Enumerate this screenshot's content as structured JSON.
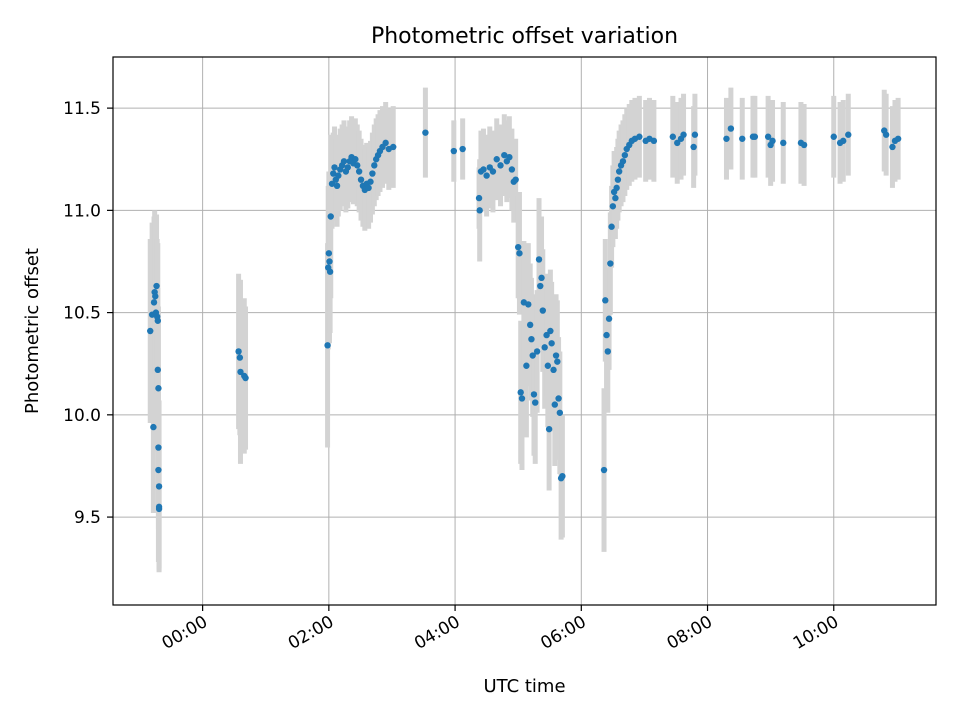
{
  "chart_data": {
    "type": "scatter",
    "title": "Photometric offset variation",
    "xlabel": "UTC time",
    "ylabel": "Photometric offset",
    "x_unit": "hours UTC",
    "xlim": [
      -1.42,
      11.62
    ],
    "ylim": [
      9.07,
      11.75
    ],
    "x_ticks": [
      {
        "value": 0,
        "label": "00:00"
      },
      {
        "value": 2,
        "label": "02:00"
      },
      {
        "value": 4,
        "label": "04:00"
      },
      {
        "value": 6,
        "label": "06:00"
      },
      {
        "value": 8,
        "label": "08:00"
      },
      {
        "value": 10,
        "label": "10:00"
      }
    ],
    "y_ticks": [
      {
        "value": 9.5,
        "label": "9.5"
      },
      {
        "value": 10.0,
        "label": "10.0"
      },
      {
        "value": 10.5,
        "label": "10.5"
      },
      {
        "value": 11.0,
        "label": "11.0"
      },
      {
        "value": 11.5,
        "label": "11.5"
      }
    ],
    "grid": true,
    "colors": {
      "marker": "#1f77b4",
      "errorbar": "#d3d3d3"
    },
    "series": [
      {
        "points": [
          [
            -0.83,
            10.41,
            0.45
          ],
          [
            -0.8,
            10.49,
            0.45
          ],
          [
            -0.78,
            9.94,
            0.42
          ],
          [
            -0.77,
            10.55,
            0.42
          ],
          [
            -0.76,
            10.6,
            0.4
          ],
          [
            -0.75,
            10.58,
            0.38
          ],
          [
            -0.74,
            10.5,
            0.4
          ],
          [
            -0.73,
            10.63,
            0.35
          ],
          [
            -0.72,
            10.48,
            0.38
          ],
          [
            -0.71,
            10.46,
            0.38
          ],
          [
            -0.71,
            10.22,
            0.4
          ],
          [
            -0.7,
            10.13,
            0.4
          ],
          [
            -0.7,
            9.84,
            0.4
          ],
          [
            -0.7,
            9.73,
            0.45
          ],
          [
            -0.69,
            9.65,
            0.42
          ],
          [
            -0.69,
            9.55,
            0.3
          ],
          [
            -0.69,
            9.54,
            0.3
          ],
          [
            0.57,
            10.31,
            0.38
          ],
          [
            0.59,
            10.28,
            0.38
          ],
          [
            0.6,
            10.21,
            0.45
          ],
          [
            0.66,
            10.19,
            0.38
          ],
          [
            0.68,
            10.18,
            0.35
          ],
          [
            1.98,
            10.34,
            0.5
          ],
          [
            1.99,
            10.72,
            0.4
          ],
          [
            2.0,
            10.79,
            0.4
          ],
          [
            2.01,
            10.75,
            0.4
          ],
          [
            2.02,
            10.7,
            0.3
          ],
          [
            2.03,
            10.97,
            0.4
          ],
          [
            2.05,
            11.13,
            0.22
          ],
          [
            2.07,
            11.18,
            0.2
          ],
          [
            2.09,
            11.21,
            0.2
          ],
          [
            2.11,
            11.15,
            0.2
          ],
          [
            2.13,
            11.12,
            0.2
          ],
          [
            2.15,
            11.17,
            0.2
          ],
          [
            2.18,
            11.2,
            0.2
          ],
          [
            2.21,
            11.22,
            0.2
          ],
          [
            2.24,
            11.24,
            0.2
          ],
          [
            2.27,
            11.19,
            0.2
          ],
          [
            2.3,
            11.21,
            0.2
          ],
          [
            2.33,
            11.24,
            0.2
          ],
          [
            2.36,
            11.26,
            0.2
          ],
          [
            2.39,
            11.23,
            0.2
          ],
          [
            2.42,
            11.25,
            0.2
          ],
          [
            2.45,
            11.22,
            0.2
          ],
          [
            2.48,
            11.19,
            0.2
          ],
          [
            2.51,
            11.15,
            0.2
          ],
          [
            2.54,
            11.12,
            0.2
          ],
          [
            2.57,
            11.1,
            0.2
          ],
          [
            2.6,
            11.13,
            0.2
          ],
          [
            2.63,
            11.11,
            0.2
          ],
          [
            2.66,
            11.14,
            0.2
          ],
          [
            2.69,
            11.18,
            0.2
          ],
          [
            2.72,
            11.22,
            0.2
          ],
          [
            2.75,
            11.25,
            0.2
          ],
          [
            2.78,
            11.27,
            0.2
          ],
          [
            2.81,
            11.29,
            0.2
          ],
          [
            2.85,
            11.31,
            0.2
          ],
          [
            2.9,
            11.33,
            0.2
          ],
          [
            2.95,
            11.3,
            0.2
          ],
          [
            3.02,
            11.31,
            0.2
          ],
          [
            3.53,
            11.38,
            0.22
          ],
          [
            3.98,
            11.29,
            0.15
          ],
          [
            4.12,
            11.3,
            0.15
          ],
          [
            4.38,
            11.06,
            0.15
          ],
          [
            4.39,
            11.0,
            0.25
          ],
          [
            4.41,
            11.19,
            0.2
          ],
          [
            4.45,
            11.2,
            0.2
          ],
          [
            4.5,
            11.17,
            0.2
          ],
          [
            4.55,
            11.21,
            0.2
          ],
          [
            4.6,
            11.19,
            0.2
          ],
          [
            4.66,
            11.25,
            0.2
          ],
          [
            4.72,
            11.22,
            0.2
          ],
          [
            4.78,
            11.27,
            0.2
          ],
          [
            4.82,
            11.24,
            0.2
          ],
          [
            4.86,
            11.26,
            0.2
          ],
          [
            4.9,
            11.2,
            0.2
          ],
          [
            4.93,
            11.14,
            0.2
          ],
          [
            4.96,
            11.15,
            0.2
          ],
          [
            5.0,
            10.82,
            0.25
          ],
          [
            5.02,
            10.79,
            0.3
          ],
          [
            5.04,
            10.11,
            0.35
          ],
          [
            5.06,
            10.08,
            0.35
          ],
          [
            5.09,
            10.55,
            0.3
          ],
          [
            5.13,
            10.24,
            0.35
          ],
          [
            5.16,
            10.54,
            0.3
          ],
          [
            5.19,
            10.44,
            0.3
          ],
          [
            5.21,
            10.37,
            0.3
          ],
          [
            5.23,
            10.29,
            0.3
          ],
          [
            5.25,
            10.1,
            0.3
          ],
          [
            5.27,
            10.06,
            0.3
          ],
          [
            5.3,
            10.31,
            0.3
          ],
          [
            5.33,
            10.76,
            0.3
          ],
          [
            5.35,
            10.63,
            0.3
          ],
          [
            5.37,
            10.67,
            0.3
          ],
          [
            5.39,
            10.51,
            0.3
          ],
          [
            5.42,
            10.33,
            0.3
          ],
          [
            5.45,
            10.39,
            0.3
          ],
          [
            5.47,
            10.24,
            0.3
          ],
          [
            5.49,
            9.93,
            0.3
          ],
          [
            5.51,
            10.41,
            0.3
          ],
          [
            5.53,
            10.35,
            0.3
          ],
          [
            5.56,
            10.22,
            0.3
          ],
          [
            5.58,
            10.05,
            0.3
          ],
          [
            5.6,
            10.29,
            0.3
          ],
          [
            5.62,
            10.26,
            0.3
          ],
          [
            5.64,
            10.08,
            0.3
          ],
          [
            5.66,
            10.01,
            0.3
          ],
          [
            5.68,
            9.69,
            0.3
          ],
          [
            5.7,
            9.7,
            0.3
          ],
          [
            6.36,
            9.73,
            0.4
          ],
          [
            6.38,
            10.56,
            0.3
          ],
          [
            6.4,
            10.39,
            0.3
          ],
          [
            6.42,
            10.31,
            0.3
          ],
          [
            6.44,
            10.47,
            0.25
          ],
          [
            6.46,
            10.74,
            0.25
          ],
          [
            6.48,
            10.92,
            0.2
          ],
          [
            6.5,
            11.02,
            0.2
          ],
          [
            6.52,
            11.09,
            0.2
          ],
          [
            6.54,
            11.06,
            0.2
          ],
          [
            6.56,
            11.11,
            0.2
          ],
          [
            6.58,
            11.15,
            0.2
          ],
          [
            6.6,
            11.19,
            0.2
          ],
          [
            6.63,
            11.22,
            0.2
          ],
          [
            6.66,
            11.24,
            0.2
          ],
          [
            6.69,
            11.27,
            0.2
          ],
          [
            6.72,
            11.3,
            0.2
          ],
          [
            6.76,
            11.32,
            0.2
          ],
          [
            6.8,
            11.34,
            0.2
          ],
          [
            6.85,
            11.35,
            0.2
          ],
          [
            6.92,
            11.36,
            0.2
          ],
          [
            7.02,
            11.34,
            0.2
          ],
          [
            7.08,
            11.35,
            0.2
          ],
          [
            7.15,
            11.34,
            0.2
          ],
          [
            7.45,
            11.36,
            0.2
          ],
          [
            7.52,
            11.33,
            0.2
          ],
          [
            7.58,
            11.35,
            0.2
          ],
          [
            7.62,
            11.37,
            0.2
          ],
          [
            7.78,
            11.31,
            0.2
          ],
          [
            7.8,
            11.37,
            0.2
          ],
          [
            8.3,
            11.35,
            0.2
          ],
          [
            8.37,
            11.4,
            0.2
          ],
          [
            8.55,
            11.35,
            0.2
          ],
          [
            8.72,
            11.36,
            0.2
          ],
          [
            8.75,
            11.36,
            0.2
          ],
          [
            8.96,
            11.36,
            0.2
          ],
          [
            9.0,
            11.32,
            0.2
          ],
          [
            9.03,
            11.34,
            0.2
          ],
          [
            9.2,
            11.33,
            0.2
          ],
          [
            9.48,
            11.33,
            0.2
          ],
          [
            9.53,
            11.32,
            0.2
          ],
          [
            10.0,
            11.36,
            0.2
          ],
          [
            10.1,
            11.33,
            0.2
          ],
          [
            10.15,
            11.34,
            0.2
          ],
          [
            10.23,
            11.37,
            0.2
          ],
          [
            10.8,
            11.39,
            0.2
          ],
          [
            10.83,
            11.37,
            0.2
          ],
          [
            10.93,
            11.31,
            0.2
          ],
          [
            10.97,
            11.34,
            0.2
          ],
          [
            11.02,
            11.35,
            0.2
          ]
        ]
      }
    ]
  }
}
